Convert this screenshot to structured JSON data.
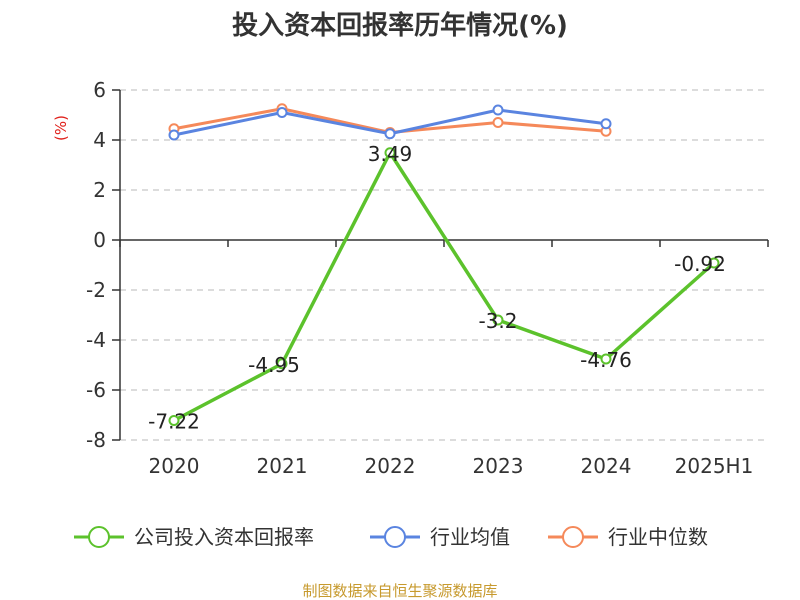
{
  "chart_data": {
    "type": "line",
    "title": "投入资本回报率历年情况(%)",
    "y_unit_label": "(%)",
    "categories": [
      "2020",
      "2021",
      "2022",
      "2023",
      "2024",
      "2025H1"
    ],
    "ylim": [
      -8,
      6
    ],
    "y_ticks": [
      6,
      4,
      2,
      0,
      -2,
      -4,
      -6,
      -8
    ],
    "y_tick_labels": [
      "6",
      "4",
      "2",
      "0",
      "-2",
      "-4",
      "-6",
      "-8"
    ],
    "grid": true,
    "legend_position": "bottom",
    "series": [
      {
        "name": "公司投入资本回报率",
        "color": "#5cc22c",
        "values": [
          -7.22,
          -4.95,
          3.49,
          -3.2,
          -4.76,
          -0.92
        ],
        "data_labels": [
          "-7.22",
          "-4.95",
          "3.49",
          "-3.2",
          "-4.76",
          "-0.92"
        ]
      },
      {
        "name": "行业均值",
        "color": "#5a84e0",
        "values": [
          4.2,
          5.1,
          4.25,
          5.2,
          4.65,
          null
        ]
      },
      {
        "name": "行业中位数",
        "color": "#f5895a",
        "values": [
          4.45,
          5.25,
          4.3,
          4.7,
          4.35,
          null
        ]
      }
    ]
  },
  "source": "制图数据来自恒生聚源数据库"
}
